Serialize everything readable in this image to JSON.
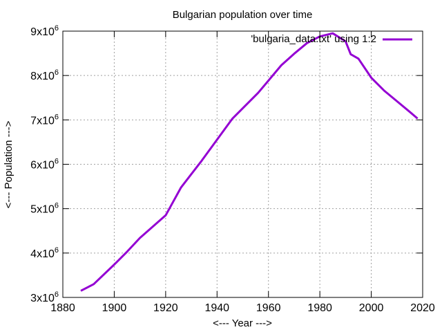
{
  "chart_data": {
    "type": "line",
    "title": "Bulgarian population over time",
    "xlabel": "<--- Year --->",
    "ylabel": "<--- Population --->",
    "xlim": [
      1880,
      2020
    ],
    "ylim": [
      3000000,
      9000000
    ],
    "x_ticks": [
      1880,
      1900,
      1920,
      1940,
      1960,
      1980,
      2000,
      2020
    ],
    "y_ticks": [
      {
        "value": 3000000,
        "mantissa": "3x10",
        "exponent": "6"
      },
      {
        "value": 4000000,
        "mantissa": "4x10",
        "exponent": "6"
      },
      {
        "value": 5000000,
        "mantissa": "5x10",
        "exponent": "6"
      },
      {
        "value": 6000000,
        "mantissa": "6x10",
        "exponent": "6"
      },
      {
        "value": 7000000,
        "mantissa": "7x10",
        "exponent": "6"
      },
      {
        "value": 8000000,
        "mantissa": "8x10",
        "exponent": "6"
      },
      {
        "value": 9000000,
        "mantissa": "9x10",
        "exponent": "6"
      }
    ],
    "grid": true,
    "legend_position": "top-right",
    "series": [
      {
        "name": "'bulgaria_data.txt' using 1:2",
        "color": "#9400d3",
        "x": [
          1887,
          1892,
          1900,
          1905,
          1910,
          1920,
          1926,
          1934,
          1946,
          1956,
          1965,
          1970,
          1975,
          1980,
          1985,
          1990,
          1992,
          1995,
          2000,
          2005,
          2010,
          2015,
          2018
        ],
        "y": [
          3150000,
          3300000,
          3740000,
          4030000,
          4340000,
          4850000,
          5480000,
          6080000,
          7030000,
          7610000,
          8230000,
          8490000,
          8730000,
          8880000,
          8950000,
          8770000,
          8480000,
          8380000,
          7950000,
          7660000,
          7420000,
          7180000,
          7030000
        ]
      }
    ]
  }
}
